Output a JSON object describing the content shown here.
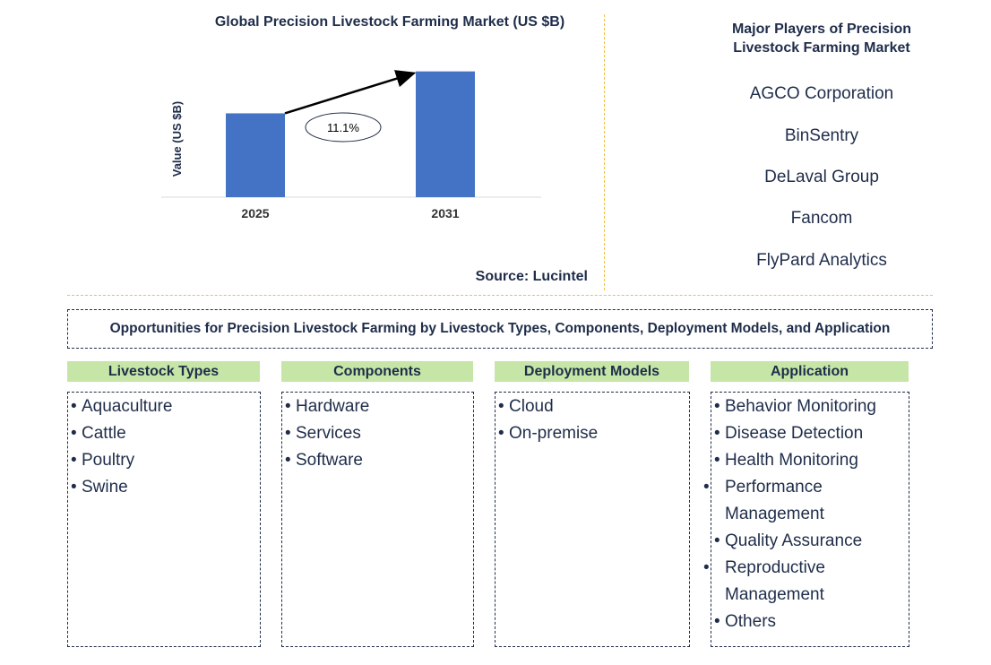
{
  "chart_data": {
    "type": "bar",
    "title": "Global Precision Livestock Farming Market (US $B)",
    "categories": [
      "2025",
      "2031"
    ],
    "values": [
      1.0,
      1.5
    ],
    "ylabel": "Value (US $B)",
    "xlabel": "",
    "ylim": [
      0,
      1.55
    ],
    "annotation": "11.1%",
    "bar_color": "#4472c4",
    "source": "Source: Lucintel"
  },
  "players": {
    "title_line1": "Major Players of Precision",
    "title_line2": "Livestock Farming Market",
    "items": [
      "AGCO Corporation",
      "BinSentry",
      "DeLaval Group",
      "Fancom",
      "FlyPard Analytics"
    ]
  },
  "opportunities": {
    "title": "Opportunities for Precision Livestock Farming by Livestock Types, Components, Deployment Models, and Application",
    "columns": [
      {
        "header": "Livestock Types",
        "items": [
          "Aquaculture",
          "Cattle",
          "Poultry",
          "Swine"
        ]
      },
      {
        "header": "Components",
        "items": [
          "Hardware",
          "Services",
          "Software"
        ]
      },
      {
        "header": "Deployment Models",
        "items": [
          "Cloud",
          "On-premise"
        ]
      },
      {
        "header": "Application",
        "items": [
          "Behavior Monitoring",
          "Disease Detection",
          "Health Monitoring",
          "Performance Management",
          "Quality Assurance",
          "Reproductive Management",
          "Others"
        ]
      }
    ]
  },
  "colors": {
    "header_bg": "#c5e6a6",
    "text": "#1f2d4a",
    "divider": "#f0c040"
  }
}
